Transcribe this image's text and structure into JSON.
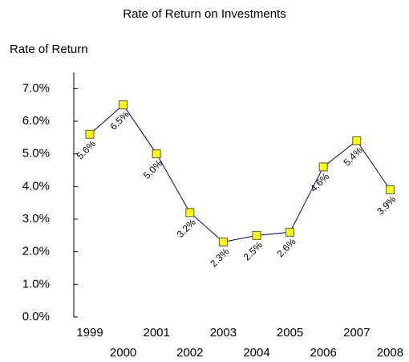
{
  "chart_data": {
    "type": "line",
    "title": "Rate of Return on Investments",
    "y_label": "Rate of Return",
    "categories": [
      "1999",
      "2000",
      "2001",
      "2002",
      "2003",
      "2004",
      "2005",
      "2006",
      "2007",
      "2008"
    ],
    "series": [
      {
        "name": "Rate of Return",
        "color": "#000080",
        "marker_color": "#ffff00",
        "values": [
          5.6,
          6.5,
          5.0,
          3.2,
          2.3,
          2.5,
          2.6,
          4.6,
          5.4,
          3.9
        ],
        "value_labels": [
          "5.6%",
          "6.5%",
          "5.0%",
          "3.2%",
          "2.3%",
          "2.5%",
          "2.6%",
          "4.6%",
          "5.4%",
          "3.9%"
        ]
      }
    ],
    "ylim": [
      0,
      7.5
    ],
    "yticks": [
      {
        "value": 0,
        "label": "0.0%"
      },
      {
        "value": 1,
        "label": "1.0%"
      },
      {
        "value": 2,
        "label": "2.0%"
      },
      {
        "value": 3,
        "label": "3.0%"
      },
      {
        "value": 4,
        "label": "4.0%"
      },
      {
        "value": 5,
        "label": "5.0%"
      },
      {
        "value": 6,
        "label": "6.0%"
      },
      {
        "value": 7,
        "label": "7.0%"
      }
    ],
    "grid": false
  }
}
